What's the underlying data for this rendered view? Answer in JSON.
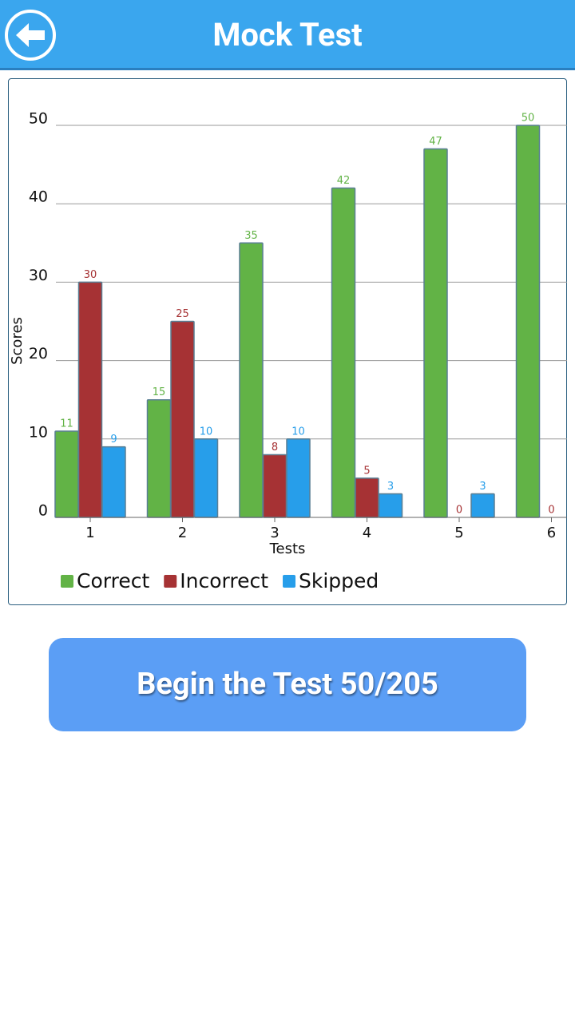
{
  "header": {
    "title": "Mock Test"
  },
  "chart_data": {
    "type": "bar",
    "x_label": "Tests",
    "y_label": "Scores",
    "categories": [
      "1",
      "2",
      "3",
      "4",
      "5",
      "6"
    ],
    "series": [
      {
        "name": "Correct",
        "color": "#62b346",
        "values": [
          11,
          15,
          35,
          42,
          47,
          50
        ]
      },
      {
        "name": "Incorrect",
        "color": "#a63234",
        "values": [
          30,
          25,
          8,
          5,
          0,
          0
        ]
      },
      {
        "name": "Skipped",
        "color": "#279eea",
        "values": [
          9,
          10,
          10,
          3,
          3,
          null
        ]
      }
    ],
    "ylim": [
      0,
      50
    ],
    "yticks": [
      0,
      10,
      20,
      30,
      40,
      50
    ],
    "grid": true,
    "legend": "bottom"
  },
  "button": {
    "label": "Begin the Test 50/205"
  }
}
